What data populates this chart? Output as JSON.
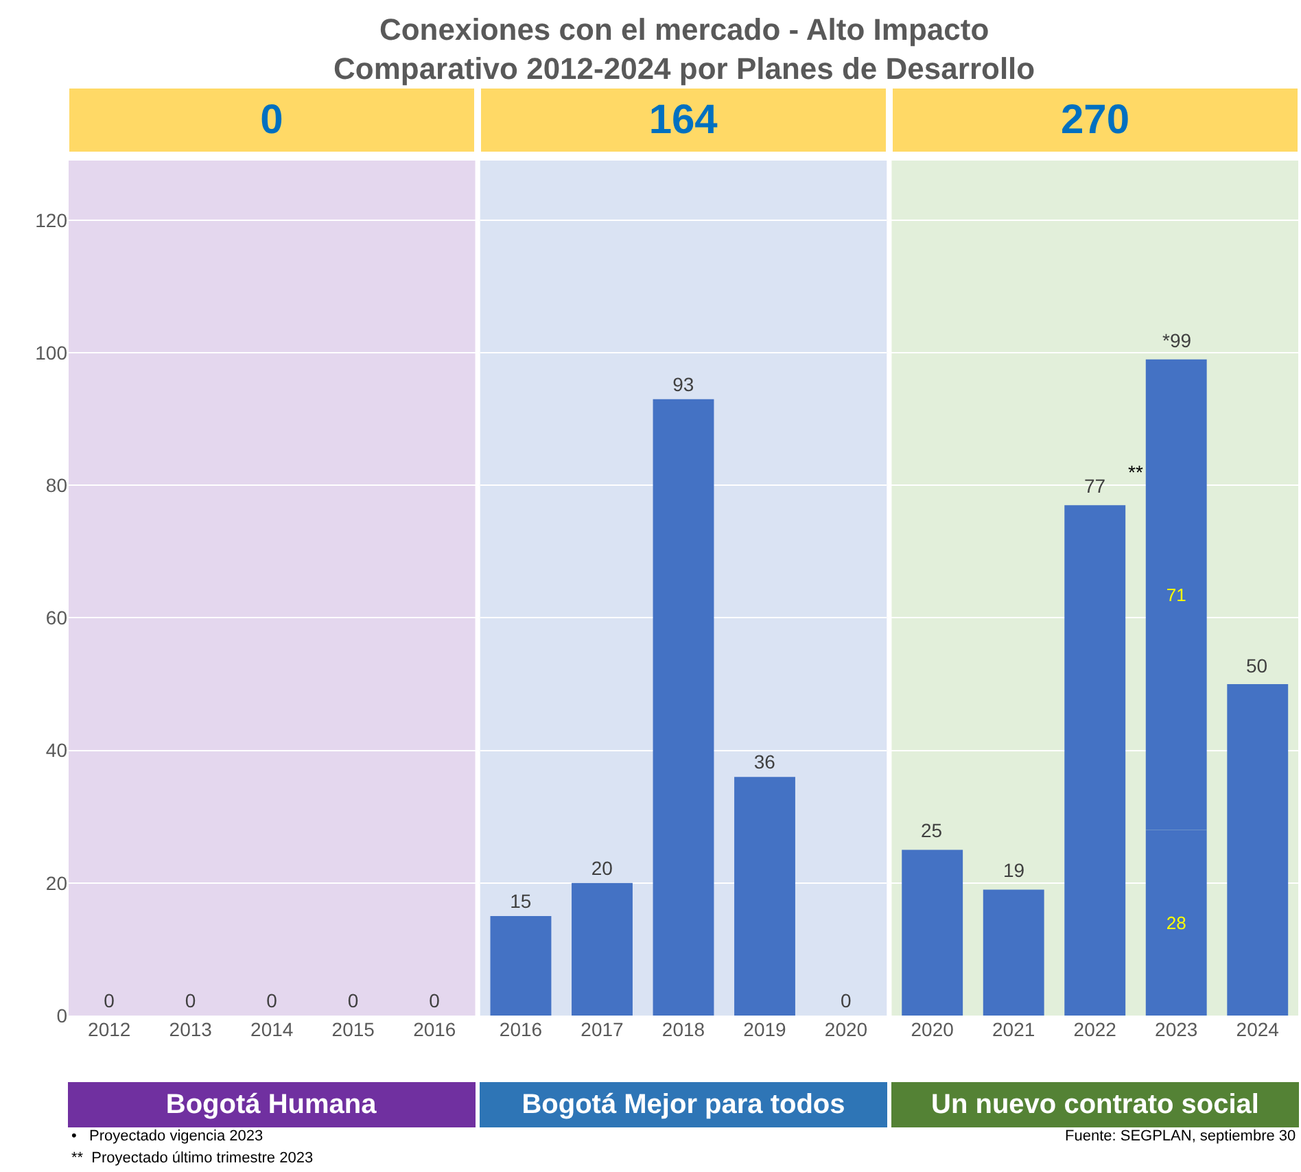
{
  "chart_data": [
    {
      "type": "bar",
      "title": "Conexiones con el mercado - Alto Impacto",
      "subtitle": "Comparativo 2012-2024 por Planes de Desarrollo",
      "xlabel": "Bogotá Humana",
      "categories": [
        "2012",
        "2013",
        "2014",
        "2015",
        "2016"
      ],
      "series": [
        {
          "color": "#4472c4",
          "values": [
            0,
            0,
            0,
            0,
            0
          ]
        }
      ],
      "data_labels": true,
      "ylim": [
        0,
        129
      ],
      "yticks": [
        0,
        20,
        40,
        60,
        80,
        100,
        120
      ],
      "grid": "y",
      "bands": [
        {
          "axis": "y",
          "from": 0,
          "to": 129,
          "color": "#e4d7ee"
        }
      ],
      "annotations": [
        "0",
        "•   Proyectado vigencia 2023",
        "**  Proyectado último trimestre 2023"
      ]
    },
    {
      "type": "bar",
      "xlabel": "Bogotá Mejor para todos",
      "categories": [
        "2016",
        "2017",
        "2018",
        "2019",
        "2020"
      ],
      "series": [
        {
          "color": "#4472c4",
          "values": [
            15,
            20,
            93,
            36,
            0
          ]
        }
      ],
      "data_labels": true,
      "ylim": [
        0,
        129
      ],
      "yticks": [
        0,
        20,
        40,
        60,
        80,
        100,
        120
      ],
      "grid": "y",
      "tick_labels": "x",
      "bands": [
        {
          "axis": "y",
          "from": 0,
          "to": 129,
          "color": "#dae3f3"
        }
      ],
      "annotations": [
        "164"
      ]
    },
    {
      "type": "bar",
      "xlabel": "Un nuevo contrato social",
      "categories": [
        "2020",
        "2021",
        "2022",
        "2023",
        "2024"
      ],
      "stacked": true,
      "series": [
        {
          "color": "#4472c4",
          "values": [
            25,
            19,
            77,
            28,
            50
          ],
          "value_labels": [
            null,
            null,
            null,
            "28",
            null
          ]
        },
        {
          "color": "#4472c4",
          "values": [
            null,
            null,
            null,
            71,
            null
          ],
          "value_labels": [
            null,
            null,
            null,
            "71",
            null
          ]
        }
      ],
      "totals": [
        "25",
        "19",
        "77",
        "*99",
        "50"
      ],
      "ylim": [
        0,
        129
      ],
      "yticks": [
        0,
        20,
        40,
        60,
        80,
        100,
        120
      ],
      "grid": "y",
      "tick_labels": "x",
      "bands": [
        {
          "axis": "y",
          "from": 0,
          "to": 129,
          "color": "#e2efda"
        }
      ],
      "annotations": [
        "270",
        "**",
        "Fuente: SEGPLAN, septiembre 30"
      ]
    }
  ]
}
